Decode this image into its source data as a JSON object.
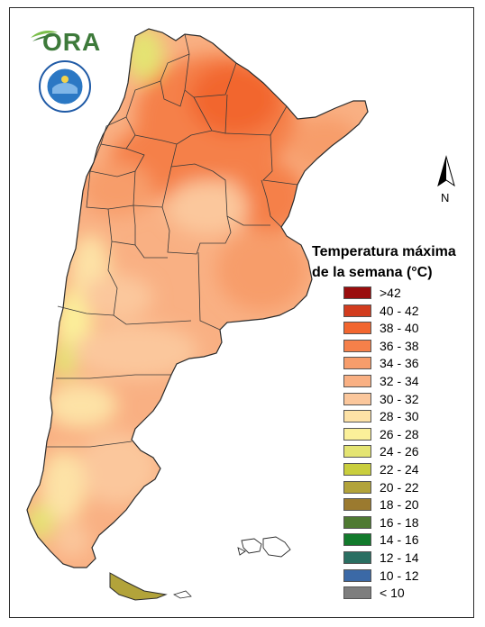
{
  "logo": {
    "text": "ORA",
    "icon": "ora-logo-icon"
  },
  "seal": {
    "icon": "smn-seal-icon"
  },
  "north_arrow": {
    "label": "N",
    "icon": "north-arrow-icon"
  },
  "legend": {
    "title_line1": "Temperatura máxima",
    "title_line2": "de la semana (°C)",
    "items": [
      {
        "label": ">42",
        "color": "#9a0d0d"
      },
      {
        "label": "40 - 42",
        "color": "#d23c1e"
      },
      {
        "label": "38 - 40",
        "color": "#f2662f"
      },
      {
        "label": "36 - 38",
        "color": "#f5804a"
      },
      {
        "label": "34 - 36",
        "color": "#f79d6b"
      },
      {
        "label": "32 - 34",
        "color": "#f9b083"
      },
      {
        "label": "30 - 32",
        "color": "#fbc79c"
      },
      {
        "label": "28 - 30",
        "color": "#fde2a6"
      },
      {
        "label": "26 - 28",
        "color": "#fbf09a"
      },
      {
        "label": "24 - 26",
        "color": "#e4e472"
      },
      {
        "label": "22 - 24",
        "color": "#c9ce3d"
      },
      {
        "label": "20 - 22",
        "color": "#b2a33a"
      },
      {
        "label": "18 - 20",
        "color": "#9b7a2f"
      },
      {
        "label": "16 - 18",
        "color": "#4f7a32"
      },
      {
        "label": "14 - 16",
        "color": "#127a2c"
      },
      {
        "label": "12 - 14",
        "color": "#2a6f62"
      },
      {
        "label": "10 - 12",
        "color": "#3b69a6"
      },
      {
        "label": "< 10",
        "color": "#7e7e7e"
      }
    ]
  }
}
